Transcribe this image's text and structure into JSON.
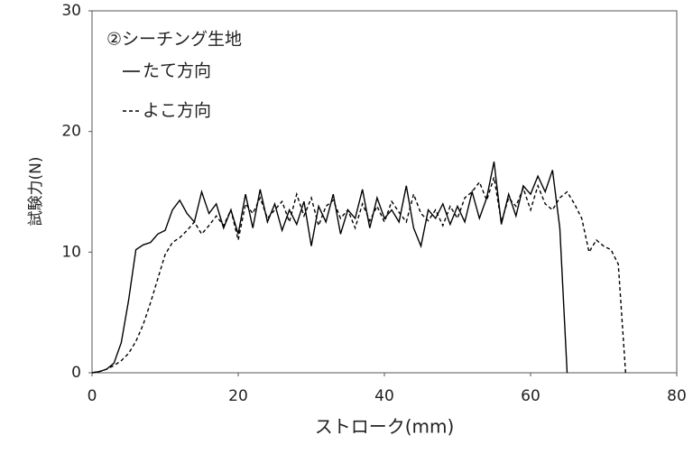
{
  "chart_data": {
    "type": "line",
    "legend_title": "②シーチング生地",
    "x_label": "ストローク(mm)",
    "y_label": "試験力(N)",
    "x": [
      0,
      1,
      2,
      3,
      4,
      5,
      6,
      7,
      8,
      9,
      10,
      11,
      12,
      13,
      14,
      15,
      16,
      17,
      18,
      19,
      20,
      21,
      22,
      23,
      24,
      25,
      26,
      27,
      28,
      29,
      30,
      31,
      32,
      33,
      34,
      35,
      36,
      37,
      38,
      39,
      40,
      41,
      42,
      43,
      44,
      45,
      46,
      47,
      48,
      49,
      50,
      51,
      52,
      53,
      54,
      55,
      56,
      57,
      58,
      59,
      60,
      61,
      62,
      63,
      64,
      65,
      66,
      67,
      68,
      69,
      70,
      71,
      72,
      73
    ],
    "series": [
      {
        "name": "たて方向",
        "color": "#000000",
        "dash": false,
        "values": [
          0,
          0.1,
          0.3,
          0.8,
          2.5,
          6,
          10.2,
          10.6,
          10.8,
          11.5,
          11.8,
          13.5,
          14.3,
          13.2,
          12.5,
          15,
          13.2,
          14,
          12,
          13.5,
          11.5,
          14.8,
          12,
          15.2,
          12.5,
          14,
          11.8,
          13.5,
          12.3,
          14.2,
          10.5,
          13.8,
          12.5,
          14.8,
          11.5,
          13.5,
          12.8,
          15.2,
          12,
          14.5,
          12.8,
          13.5,
          12.5,
          15.5,
          12,
          10.5,
          13.5,
          12.8,
          14,
          12.3,
          13.8,
          12.5,
          15,
          12.8,
          14.5,
          17.5,
          12.3,
          14.8,
          13,
          15.5,
          14.8,
          16.3,
          15,
          16.8,
          12,
          0,
          null,
          null,
          null,
          null,
          null,
          null,
          null,
          null
        ]
      },
      {
        "name": "よこ方向",
        "color": "#000000",
        "dash": true,
        "values": [
          0,
          0.1,
          0.3,
          0.6,
          1,
          1.6,
          2.6,
          4,
          5.8,
          7.8,
          9.8,
          10.8,
          11.2,
          11.8,
          12.5,
          11.5,
          12.2,
          13,
          12.2,
          13.5,
          11,
          14,
          13.2,
          14.5,
          12.8,
          13.5,
          14.2,
          12.5,
          14.8,
          13,
          14.5,
          12.2,
          13.8,
          14.3,
          12.8,
          13.5,
          12,
          14,
          12.6,
          13.8,
          12.5,
          14.2,
          13.3,
          12.5,
          14.8,
          13.2,
          12.6,
          13.5,
          12.2,
          13.8,
          12.8,
          14.5,
          15,
          15.8,
          14.3,
          16.2,
          12.5,
          14.5,
          13.8,
          15.3,
          13.5,
          15.5,
          14,
          13.5,
          14.5,
          15,
          14,
          12.8,
          10,
          11,
          10.5,
          10.2,
          9,
          0
        ]
      }
    ],
    "xlim": [
      0,
      80
    ],
    "xticks": [
      0,
      20,
      40,
      60,
      80
    ],
    "ylim": [
      0,
      30
    ],
    "yticks": [
      0,
      10,
      20,
      30
    ],
    "grid": false
  }
}
